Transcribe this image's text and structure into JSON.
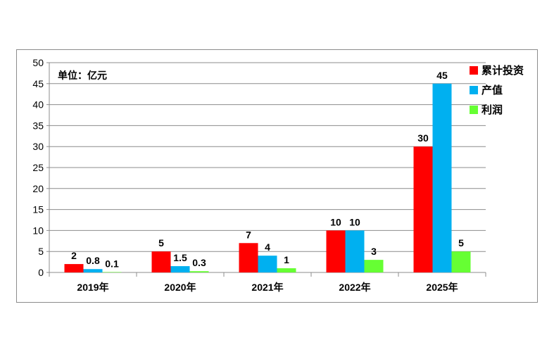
{
  "chart_data": {
    "type": "bar",
    "unit_note": "单位：亿元",
    "categories": [
      "2019年",
      "2020年",
      "2021年",
      "2022年",
      "2025年"
    ],
    "series": [
      {
        "name": "累计投资",
        "color": "#ff0000",
        "values": [
          2,
          5,
          7,
          10,
          30
        ],
        "labels": [
          "2",
          "5",
          "7",
          "10",
          "30"
        ]
      },
      {
        "name": "产值",
        "color": "#00b0f0",
        "values": [
          0.8,
          1.5,
          4,
          10,
          45
        ],
        "labels": [
          "0.8",
          "1.5",
          "4",
          "10",
          "45"
        ]
      },
      {
        "name": "利润",
        "color": "#66ff33",
        "values": [
          0.1,
          0.3,
          1,
          3,
          5
        ],
        "labels": [
          "0.1",
          "0.3",
          "1",
          "3",
          "5"
        ]
      }
    ],
    "ylim": [
      0,
      50
    ],
    "yticks": [
      0,
      5,
      10,
      15,
      20,
      25,
      30,
      35,
      40,
      45,
      50
    ],
    "grid": true,
    "legend_position": "right"
  }
}
